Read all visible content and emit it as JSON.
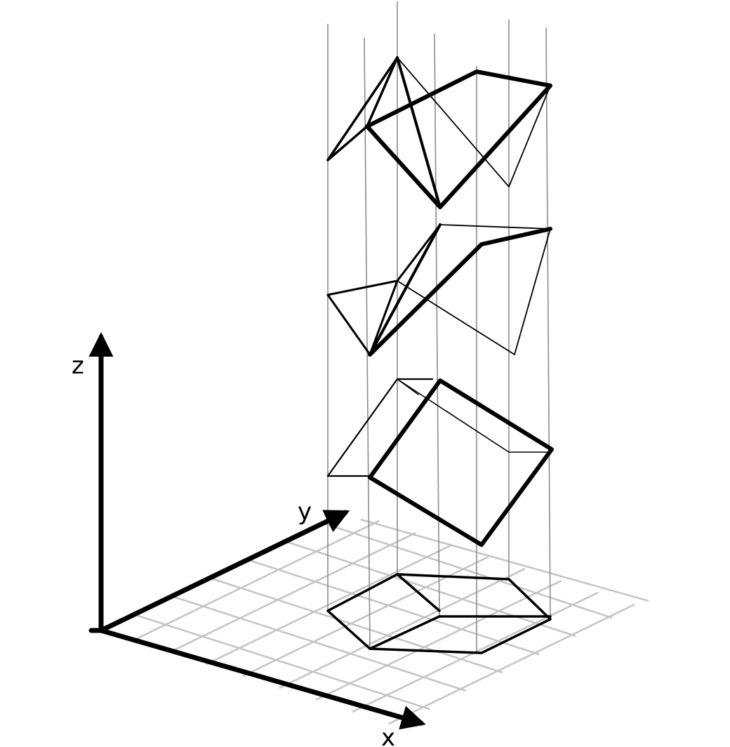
{
  "axes": {
    "x_label": "x",
    "y_label": "y",
    "z_label": "z"
  },
  "colors": {
    "ink": "#000000",
    "grid": "#c4c4c4",
    "vertical_lines": "#8c8c8c",
    "background": "#ffffff"
  },
  "figure": {
    "description_visible": false,
    "layers": 4
  }
}
